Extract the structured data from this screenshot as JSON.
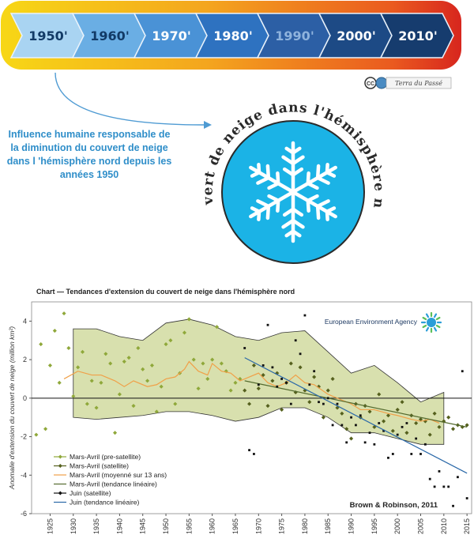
{
  "timeline": {
    "decades": [
      "1950'",
      "1960'",
      "1970'",
      "1980'",
      "1990'",
      "2000'",
      "2010'"
    ],
    "colors": [
      "#a9d4f2",
      "#6aaee4",
      "#4a92d6",
      "#2e72c0",
      "#2c5fa5",
      "#1d4a85",
      "#163c6e"
    ],
    "text_colors": [
      "#123a66",
      "#123a66",
      "#ffffff",
      "#ffffff",
      "#8fb3dd",
      "#ffffff",
      "#ffffff"
    ]
  },
  "credit": {
    "cc": "CC",
    "text": "Terra du Passé"
  },
  "annotation": "Influence humaine responsable de la diminution du couvert de neige dans l 'hémisphère nord depuis les années 1950",
  "emblem_title": "Couvert de neige dans l'hémisphère nord",
  "chart_data": {
    "type": "line",
    "title": "Chart — Tendances d'extension du couvert de neige dans l'hémisphère nord",
    "ylabel": "Anomalie d'extension du couvert de neige (million km²)",
    "xlabel": "",
    "xlim": [
      1921,
      2016
    ],
    "ylim": [
      -6,
      5
    ],
    "yticks": [
      -6,
      -4,
      -2,
      0,
      2,
      4
    ],
    "xticks": [
      1925,
      1930,
      1935,
      1940,
      1945,
      1950,
      1955,
      1960,
      1965,
      1970,
      1975,
      1980,
      1985,
      1990,
      1995,
      2000,
      2005,
      2010,
      2015
    ],
    "source": "Brown & Robinson, 2011",
    "agency": "European Environment Agency",
    "legend": [
      "Mars-Avril (pre-satellite)",
      "Mars-Avril (satellite)",
      "Mars-Avril (moyenné sur 13 ans)",
      "Mars-Avril (tendance linéaire)",
      "Juin (satellite)",
      "Juin (tendance linéaire)"
    ],
    "legend_position": "bottom-left",
    "series": [
      {
        "name": "Mars-Avril (pre-satellite)",
        "kind": "points",
        "color": "#8fa83a",
        "x": [
          1922,
          1923,
          1924,
          1925,
          1926,
          1927,
          1928,
          1929,
          1930,
          1931,
          1932,
          1933,
          1934,
          1935,
          1936,
          1937,
          1938,
          1939,
          1940,
          1941,
          1942,
          1943,
          1944,
          1945,
          1946,
          1947,
          1948,
          1949,
          1950,
          1951,
          1952,
          1953,
          1954,
          1955,
          1956,
          1957,
          1958,
          1959,
          1960,
          1961,
          1962,
          1963,
          1964,
          1965,
          1966
        ],
        "y": [
          -1.9,
          2.8,
          -1.6,
          1.7,
          3.5,
          0.8,
          4.4,
          2.6,
          0.1,
          1.6,
          2.4,
          -0.3,
          0.9,
          -0.5,
          0.8,
          2.3,
          1.8,
          -1.8,
          0.2,
          1.9,
          2.1,
          -0.4,
          2.6,
          1.5,
          0.9,
          1.7,
          -0.7,
          0.6,
          2.8,
          3.0,
          -0.3,
          1.3,
          3.4,
          4.1,
          2.0,
          0.5,
          1.8,
          1.0,
          2.0,
          3.7,
          1.8,
          1.4,
          0.4,
          0.8,
          1.0
        ]
      },
      {
        "name": "Mars-Avril (satellite)",
        "kind": "points",
        "color": "#55601d",
        "x": [
          1967,
          1968,
          1969,
          1970,
          1971,
          1972,
          1973,
          1974,
          1975,
          1976,
          1977,
          1978,
          1979,
          1980,
          1981,
          1982,
          1983,
          1984,
          1985,
          1986,
          1987,
          1988,
          1989,
          1990,
          1991,
          1992,
          1993,
          1994,
          1995,
          1996,
          1997,
          1998,
          1999,
          2000,
          2001,
          2002,
          2003,
          2004,
          2005,
          2006,
          2007,
          2008,
          2009,
          2010,
          2011,
          2012,
          2013,
          2014,
          2015
        ],
        "y": [
          0.4,
          -0.3,
          1.7,
          0.5,
          1.2,
          -0.4,
          0.9,
          1.3,
          -0.6,
          0.8,
          1.8,
          0.3,
          1.6,
          0.4,
          -0.2,
          1.1,
          0.6,
          -1.0,
          0.4,
          1.0,
          -0.5,
          -0.8,
          -1.6,
          -2.1,
          -0.3,
          -1.0,
          -0.4,
          -0.7,
          -1.5,
          0.2,
          -1.2,
          -0.9,
          -1.7,
          -0.6,
          -0.2,
          -1.8,
          -0.9,
          -1.3,
          -1.1,
          -1.2,
          -1.9,
          -0.8,
          -1.5,
          -1.2,
          -1.0,
          -1.6,
          -1.4,
          -1.5,
          -1.4
        ]
      },
      {
        "name": "Mars-Avril (moyenné sur 13 ans)",
        "kind": "line",
        "color": "#f0a048",
        "x": [
          1928,
          1931,
          1934,
          1936,
          1939,
          1941,
          1943,
          1946,
          1948,
          1950,
          1952,
          1954,
          1955,
          1957,
          1959,
          1960,
          1962,
          1964,
          1966,
          1968,
          1970,
          1972,
          1974,
          1976,
          1978,
          1980,
          1982,
          1985,
          1988,
          1990,
          1992,
          1995,
          1998,
          2000,
          2003,
          2005,
          2007,
          2009
        ],
        "y": [
          1.0,
          1.4,
          1.2,
          1.2,
          0.9,
          0.6,
          0.9,
          0.6,
          0.7,
          1.0,
          1.1,
          1.5,
          1.9,
          1.4,
          1.2,
          1.8,
          1.4,
          1.3,
          0.9,
          1.1,
          1.3,
          0.8,
          0.6,
          0.8,
          1.2,
          0.8,
          0.7,
          0.2,
          -0.1,
          -0.3,
          -0.6,
          -0.6,
          -0.8,
          -0.9,
          -1.1,
          -1.2,
          -1.1,
          -1.3
        ]
      },
      {
        "name": "Mars-Avril (tendance linéaire)",
        "kind": "line",
        "color": "#556b2f",
        "x": [
          1967,
          2015
        ],
        "y": [
          0.9,
          -1.5
        ]
      },
      {
        "name": "Juin (satellite)",
        "kind": "points",
        "color": "#111111",
        "x": [
          1967,
          1968,
          1969,
          1970,
          1971,
          1972,
          1973,
          1974,
          1975,
          1976,
          1977,
          1978,
          1979,
          1980,
          1981,
          1982,
          1983,
          1984,
          1985,
          1986,
          1987,
          1988,
          1989,
          1990,
          1991,
          1992,
          1993,
          1994,
          1995,
          1996,
          1997,
          1998,
          1999,
          2000,
          2001,
          2002,
          2003,
          2004,
          2005,
          2006,
          2007,
          2008,
          2009,
          2010,
          2011,
          2012,
          2013,
          2014,
          2015
        ],
        "y": [
          2.6,
          -2.7,
          -2.9,
          0.7,
          1.7,
          3.8,
          1.6,
          0.6,
          1.0,
          0.8,
          -0.3,
          3.0,
          2.3,
          4.3,
          0.7,
          1.4,
          -0.2,
          -0.3,
          0.0,
          -1.4,
          -0.3,
          -1.4,
          -2.3,
          -1.0,
          -1.4,
          -0.9,
          -2.3,
          -1.8,
          -2.4,
          -1.3,
          -1.7,
          -3.1,
          -2.9,
          -1.9,
          -1.5,
          -1.3,
          -2.9,
          -2.1,
          -2.9,
          -2.4,
          -4.2,
          -4.6,
          -3.8,
          -4.6,
          -4.6,
          -5.6,
          -4.1,
          1.4,
          -5.2
        ]
      },
      {
        "name": "Juin (tendance linéaire)",
        "kind": "line",
        "color": "#2a68a8",
        "x": [
          1967,
          2015
        ],
        "y": [
          2.1,
          -3.9
        ]
      }
    ],
    "band": {
      "color": "#d8e0ae",
      "x": [
        1930,
        1935,
        1940,
        1945,
        1950,
        1955,
        1960,
        1965,
        1970,
        1975,
        1980,
        1985,
        1990,
        1995,
        2000,
        2005,
        2010
      ],
      "upper": [
        3.6,
        3.6,
        3.2,
        3.0,
        3.9,
        4.1,
        3.8,
        3.2,
        3.0,
        3.4,
        3.5,
        2.4,
        1.3,
        1.7,
        0.8,
        -0.2,
        0.3
      ],
      "lower": [
        -1.0,
        -1.1,
        -1.0,
        -0.9,
        -0.7,
        -0.7,
        -0.9,
        -1.2,
        -1.0,
        -0.5,
        -0.5,
        -1.0,
        -1.8,
        -1.8,
        -2.1,
        -2.4,
        -2.4
      ]
    }
  }
}
